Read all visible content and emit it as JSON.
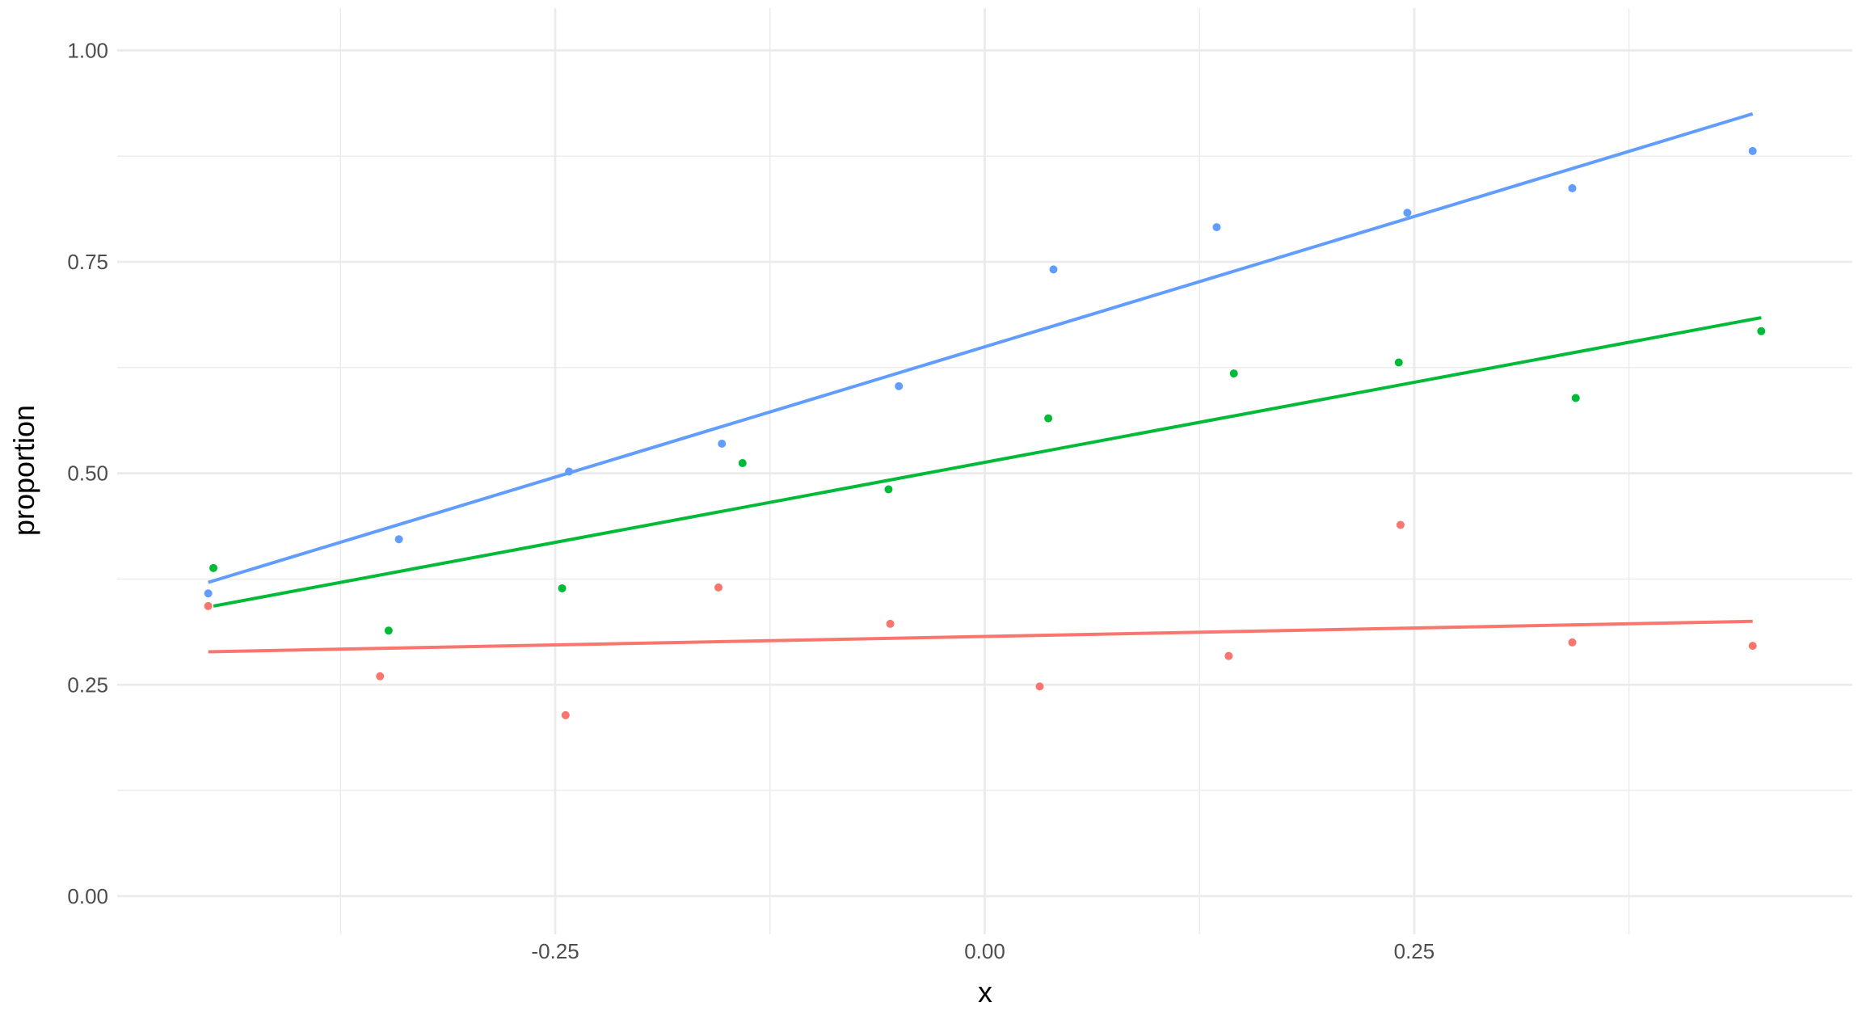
{
  "chart_data": {
    "type": "scatter",
    "title": "",
    "xlabel": "x",
    "ylabel": "proportion",
    "xlim": [
      -0.505,
      0.505
    ],
    "ylim": [
      -0.045,
      1.05
    ],
    "grid": true,
    "legend": "none",
    "x_ticks": [
      {
        "value": -0.25,
        "label": "-0.25"
      },
      {
        "value": 0.0,
        "label": "0.00"
      },
      {
        "value": 0.25,
        "label": "0.25"
      }
    ],
    "y_ticks": [
      {
        "value": 0.0,
        "label": "0.00"
      },
      {
        "value": 0.25,
        "label": "0.25"
      },
      {
        "value": 0.5,
        "label": "0.50"
      },
      {
        "value": 0.75,
        "label": "0.75"
      },
      {
        "value": 1.0,
        "label": "1.00"
      }
    ],
    "x_minor_grid": [
      -0.375,
      -0.125,
      0.125,
      0.375
    ],
    "y_minor_grid": [
      0.125,
      0.375,
      0.625,
      0.875
    ],
    "series": [
      {
        "color": "#f8766d",
        "points": [
          {
            "x": -0.452,
            "y": 0.343
          },
          {
            "x": -0.352,
            "y": 0.26
          },
          {
            "x": -0.244,
            "y": 0.214
          },
          {
            "x": -0.155,
            "y": 0.365
          },
          {
            "x": -0.055,
            "y": 0.322
          },
          {
            "x": 0.032,
            "y": 0.248
          },
          {
            "x": 0.142,
            "y": 0.284
          },
          {
            "x": 0.242,
            "y": 0.439
          },
          {
            "x": 0.342,
            "y": 0.3
          },
          {
            "x": 0.447,
            "y": 0.296
          }
        ],
        "fit": {
          "x": [
            -0.452,
            0.447
          ],
          "y": [
            0.289,
            0.325
          ]
        }
      },
      {
        "color": "#00ba38",
        "points": [
          {
            "x": -0.449,
            "y": 0.388
          },
          {
            "x": -0.347,
            "y": 0.314
          },
          {
            "x": -0.246,
            "y": 0.364
          },
          {
            "x": -0.141,
            "y": 0.512
          },
          {
            "x": -0.056,
            "y": 0.481
          },
          {
            "x": 0.037,
            "y": 0.565
          },
          {
            "x": 0.145,
            "y": 0.618
          },
          {
            "x": 0.241,
            "y": 0.631
          },
          {
            "x": 0.344,
            "y": 0.589
          },
          {
            "x": 0.452,
            "y": 0.668
          }
        ],
        "fit": {
          "x": [
            -0.449,
            0.452
          ],
          "y": [
            0.343,
            0.684
          ]
        }
      },
      {
        "color": "#619cff",
        "points": [
          {
            "x": -0.452,
            "y": 0.358
          },
          {
            "x": -0.341,
            "y": 0.422
          },
          {
            "x": -0.242,
            "y": 0.502
          },
          {
            "x": -0.153,
            "y": 0.535
          },
          {
            "x": -0.05,
            "y": 0.603
          },
          {
            "x": 0.04,
            "y": 0.741
          },
          {
            "x": 0.135,
            "y": 0.791
          },
          {
            "x": 0.246,
            "y": 0.808
          },
          {
            "x": 0.342,
            "y": 0.837
          },
          {
            "x": 0.447,
            "y": 0.881
          }
        ],
        "fit": {
          "x": [
            -0.452,
            0.447
          ],
          "y": [
            0.371,
            0.925
          ]
        }
      }
    ]
  }
}
